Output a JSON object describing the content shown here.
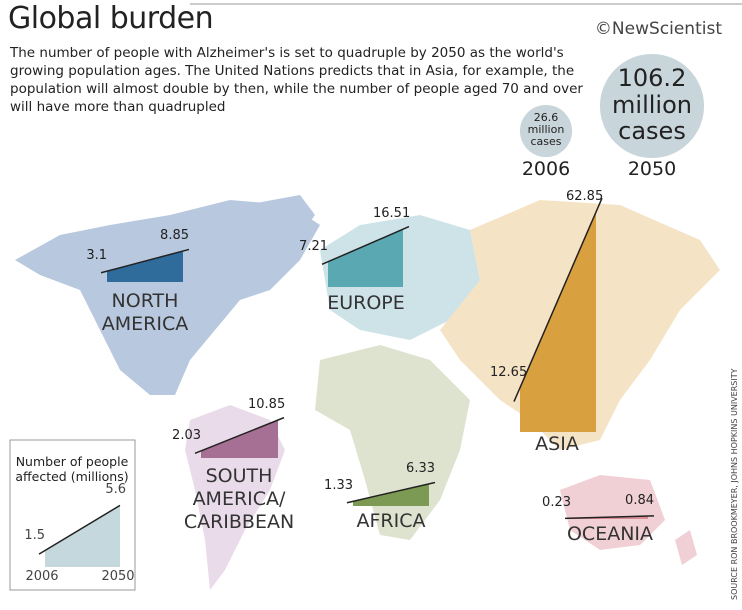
{
  "header": {
    "title": "Global burden",
    "description": "The number of people with Alzheimer's is set to quadruple by 2050 as the world's growing population ages. The United Nations predicts that in Asia, for example, the population will almost double by then, while the number of people aged 70 and over will have more than quadrupled",
    "logo": "©NewScientist"
  },
  "source": "SOURCE RON BROOKMEYER, JOHNS HOPKINS UNIVERSITY",
  "chart_data": [
    {
      "type": "bubble",
      "categories": [
        "2006",
        "2050"
      ],
      "values": [
        26.6,
        106.2
      ],
      "value_labels": [
        "26.6 million cases",
        "106.2 million cases"
      ],
      "color": "#c8d5da"
    },
    {
      "type": "slope",
      "title": "NORTH AMERICA",
      "values": [
        3.1,
        8.85
      ],
      "color": "#2f6c9c"
    },
    {
      "type": "slope",
      "title": "EUROPE",
      "values": [
        7.21,
        16.51
      ],
      "color": "#5aa9b2"
    },
    {
      "type": "slope",
      "title": "SOUTH AMERICA/ CARIBBEAN",
      "values": [
        2.03,
        10.85
      ],
      "color": "#a66f94"
    },
    {
      "type": "slope",
      "title": "AFRICA",
      "values": [
        1.33,
        6.33
      ],
      "color": "#7c9a53"
    },
    {
      "type": "slope",
      "title": "ASIA",
      "values": [
        12.65,
        62.85
      ],
      "color": "#d9a03f"
    },
    {
      "type": "slope",
      "title": "OCEANIA",
      "values": [
        0.23,
        0.84
      ],
      "color": "#d98c93"
    },
    {
      "type": "slope",
      "title": "Number of people affected (millions)",
      "categories": [
        "2006",
        "2050"
      ],
      "values": [
        1.5,
        5.6
      ],
      "color": "#c5d8dd"
    }
  ]
}
